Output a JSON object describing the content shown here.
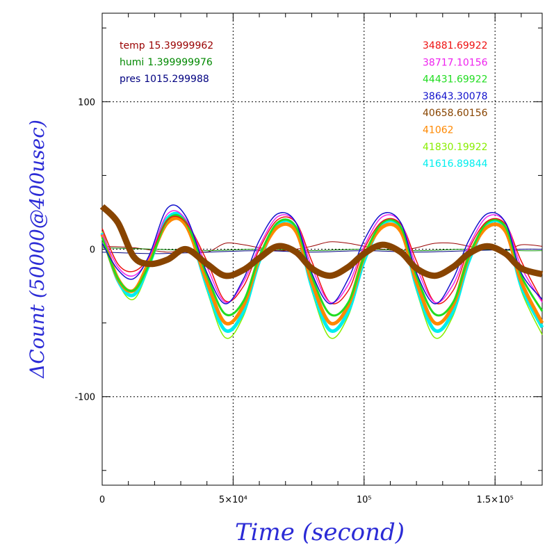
{
  "chart_data": {
    "type": "line",
    "xlabel": "Time (second)",
    "ylabel": "ΔCount (50000@400usec)",
    "xlim": [
      0,
      168000
    ],
    "ylim": [
      -160,
      160
    ],
    "grid": true,
    "x_ticks": [
      {
        "value": 0,
        "label": "0"
      },
      {
        "value": 50000,
        "label": "5×10⁴"
      },
      {
        "value": 100000,
        "label": "10⁵"
      },
      {
        "value": 150000,
        "label": "1.5×10⁵"
      }
    ],
    "y_ticks": [
      {
        "value": 100,
        "label": "100"
      },
      {
        "value": 0,
        "label": "0"
      },
      {
        "value": -100,
        "label": "-100"
      }
    ],
    "legend_left": [
      {
        "name": "temp",
        "value": "15.39999962",
        "color": "#990000"
      },
      {
        "name": "humi",
        "value": "1.399999976",
        "color": "#008800"
      },
      {
        "name": "pres",
        "value": "1015.299988",
        "color": "#000080"
      }
    ],
    "legend_right": [
      {
        "label": "34881.69922",
        "color": "#ee1111"
      },
      {
        "label": "38717.10156",
        "color": "#ee22ee"
      },
      {
        "label": "44431.69922",
        "color": "#22dd22"
      },
      {
        "label": "38643.30078",
        "color": "#1111cc"
      },
      {
        "label": "40658.60156",
        "color": "#884400"
      },
      {
        "label": "41062",
        "color": "#ff8800"
      },
      {
        "label": "41830.19922",
        "color": "#88ee00"
      },
      {
        "label": "41616.89844",
        "color": "#00eeee"
      }
    ],
    "series": [
      {
        "name": "34881.69922",
        "color": "#ee1111",
        "width": 1.5,
        "x": [
          0,
          6000,
          12000,
          18000,
          25000,
          32000,
          40000,
          47000,
          54000,
          60000,
          67000,
          74000,
          80000,
          87000,
          94000,
          100000,
          107000,
          114000,
          120000,
          127000,
          134000,
          140000,
          147000,
          154000,
          160000,
          168000
        ],
        "y": [
          14,
          -10,
          -15,
          -5,
          20,
          18,
          -8,
          -35,
          -25,
          0,
          20,
          18,
          -8,
          -36,
          -28,
          0,
          19,
          17,
          -8,
          -36,
          -28,
          0,
          19,
          17,
          -8,
          -35
        ]
      },
      {
        "name": "38717.10156",
        "color": "#ee22ee",
        "width": 1.5,
        "x": [
          0,
          6000,
          12000,
          18000,
          25000,
          32000,
          40000,
          47000,
          54000,
          60000,
          67000,
          74000,
          80000,
          87000,
          94000,
          100000,
          107000,
          114000,
          120000,
          127000,
          134000,
          140000,
          147000,
          154000,
          160000,
          168000
        ],
        "y": [
          10,
          -12,
          -18,
          -5,
          24,
          20,
          -12,
          -36,
          -22,
          2,
          22,
          18,
          -12,
          -36,
          -24,
          2,
          22,
          18,
          -12,
          -36,
          -24,
          2,
          22,
          18,
          -12,
          -36
        ]
      },
      {
        "name": "44431.69922",
        "color": "#22dd22",
        "width": 3,
        "x": [
          0,
          6000,
          12000,
          18000,
          25000,
          32000,
          40000,
          47000,
          54000,
          60000,
          67000,
          74000,
          80000,
          87000,
          94000,
          100000,
          107000,
          114000,
          120000,
          127000,
          134000,
          140000,
          147000,
          154000,
          160000,
          168000
        ],
        "y": [
          8,
          -20,
          -28,
          -10,
          20,
          18,
          -18,
          -44,
          -35,
          -5,
          18,
          15,
          -18,
          -44,
          -36,
          -5,
          18,
          15,
          -18,
          -44,
          -36,
          -5,
          18,
          15,
          -18,
          -42
        ]
      },
      {
        "name": "38643.30078",
        "color": "#1111cc",
        "width": 1.5,
        "x": [
          0,
          6000,
          12000,
          18000,
          25000,
          32000,
          40000,
          47000,
          54000,
          60000,
          67000,
          74000,
          80000,
          87000,
          94000,
          100000,
          107000,
          114000,
          120000,
          127000,
          134000,
          140000,
          147000,
          154000,
          160000,
          168000
        ],
        "y": [
          4,
          -14,
          -20,
          -4,
          28,
          22,
          -16,
          -37,
          -20,
          6,
          24,
          18,
          -16,
          -37,
          -20,
          6,
          24,
          18,
          -16,
          -37,
          -20,
          6,
          24,
          18,
          -16,
          -34
        ]
      },
      {
        "name": "40658.60156",
        "color": "#884400",
        "width": 9,
        "x": [
          0,
          6000,
          12000,
          18000,
          25000,
          32000,
          40000,
          47000,
          54000,
          60000,
          67000,
          74000,
          80000,
          87000,
          94000,
          100000,
          107000,
          114000,
          120000,
          127000,
          134000,
          140000,
          147000,
          154000,
          160000,
          168000
        ],
        "y": [
          29,
          18,
          -5,
          -10,
          -7,
          0,
          -10,
          -18,
          -14,
          -6,
          2,
          -2,
          -13,
          -18,
          -12,
          -3,
          3,
          -2,
          -13,
          -18,
          -12,
          -3,
          2,
          -3,
          -13,
          -17
        ]
      },
      {
        "name": "41062",
        "color": "#ff8800",
        "width": 5,
        "x": [
          0,
          6000,
          12000,
          18000,
          25000,
          32000,
          40000,
          47000,
          54000,
          60000,
          67000,
          74000,
          80000,
          87000,
          94000,
          100000,
          107000,
          114000,
          120000,
          127000,
          134000,
          140000,
          147000,
          154000,
          160000,
          168000
        ],
        "y": [
          10,
          -20,
          -28,
          -8,
          18,
          16,
          -22,
          -50,
          -38,
          -6,
          15,
          12,
          -22,
          -50,
          -38,
          -5,
          15,
          12,
          -22,
          -50,
          -38,
          -5,
          15,
          12,
          -22,
          -50
        ]
      },
      {
        "name": "41830.19922",
        "color": "#88ee00",
        "width": 1.5,
        "x": [
          0,
          6000,
          12000,
          18000,
          25000,
          32000,
          40000,
          47000,
          54000,
          60000,
          67000,
          74000,
          80000,
          87000,
          94000,
          100000,
          107000,
          114000,
          120000,
          127000,
          134000,
          140000,
          147000,
          154000,
          160000,
          168000
        ],
        "y": [
          12,
          -22,
          -34,
          -12,
          20,
          17,
          -28,
          -60,
          -45,
          -10,
          16,
          13,
          -28,
          -60,
          -45,
          -10,
          16,
          13,
          -28,
          -60,
          -45,
          -10,
          16,
          13,
          -28,
          -58
        ]
      },
      {
        "name": "41616.89844",
        "color": "#00eeee",
        "width": 5,
        "x": [
          0,
          6000,
          12000,
          18000,
          25000,
          32000,
          40000,
          47000,
          54000,
          60000,
          67000,
          74000,
          80000,
          87000,
          94000,
          100000,
          107000,
          114000,
          120000,
          127000,
          134000,
          140000,
          147000,
          154000,
          160000,
          168000
        ],
        "y": [
          11,
          -21,
          -31,
          -10,
          21,
          18,
          -25,
          -55,
          -42,
          -8,
          17,
          14,
          -25,
          -55,
          -42,
          -8,
          17,
          14,
          -25,
          -55,
          -42,
          -8,
          17,
          14,
          -25,
          -53
        ]
      },
      {
        "name": "temp",
        "color": "#990000",
        "width": 1,
        "x": [
          0,
          12000,
          25000,
          32000,
          40000,
          47000,
          54000,
          60000,
          67000,
          74000,
          80000,
          87000,
          94000,
          100000,
          107000,
          114000,
          120000,
          127000,
          134000,
          140000,
          147000,
          154000,
          160000,
          168000
        ],
        "y": [
          2,
          1,
          -2,
          0,
          -2,
          4,
          3,
          1,
          -1,
          0,
          2,
          5,
          4,
          2,
          0,
          -1,
          1,
          4,
          4,
          2,
          0,
          -1,
          3,
          2
        ]
      },
      {
        "name": "humi",
        "color": "#008800",
        "width": 1,
        "x": [
          0,
          20000,
          40000,
          60000,
          80000,
          100000,
          120000,
          140000,
          160000,
          168000
        ],
        "y": [
          1,
          0,
          -1,
          0,
          -1,
          0,
          -1,
          0,
          -1,
          -1
        ]
      },
      {
        "name": "pres",
        "color": "#000080",
        "width": 1,
        "x": [
          0,
          20000,
          40000,
          60000,
          80000,
          100000,
          120000,
          140000,
          160000,
          168000
        ],
        "y": [
          -2,
          -3,
          -2,
          -1,
          -2,
          -1,
          -2,
          -1,
          0,
          0
        ]
      }
    ]
  }
}
